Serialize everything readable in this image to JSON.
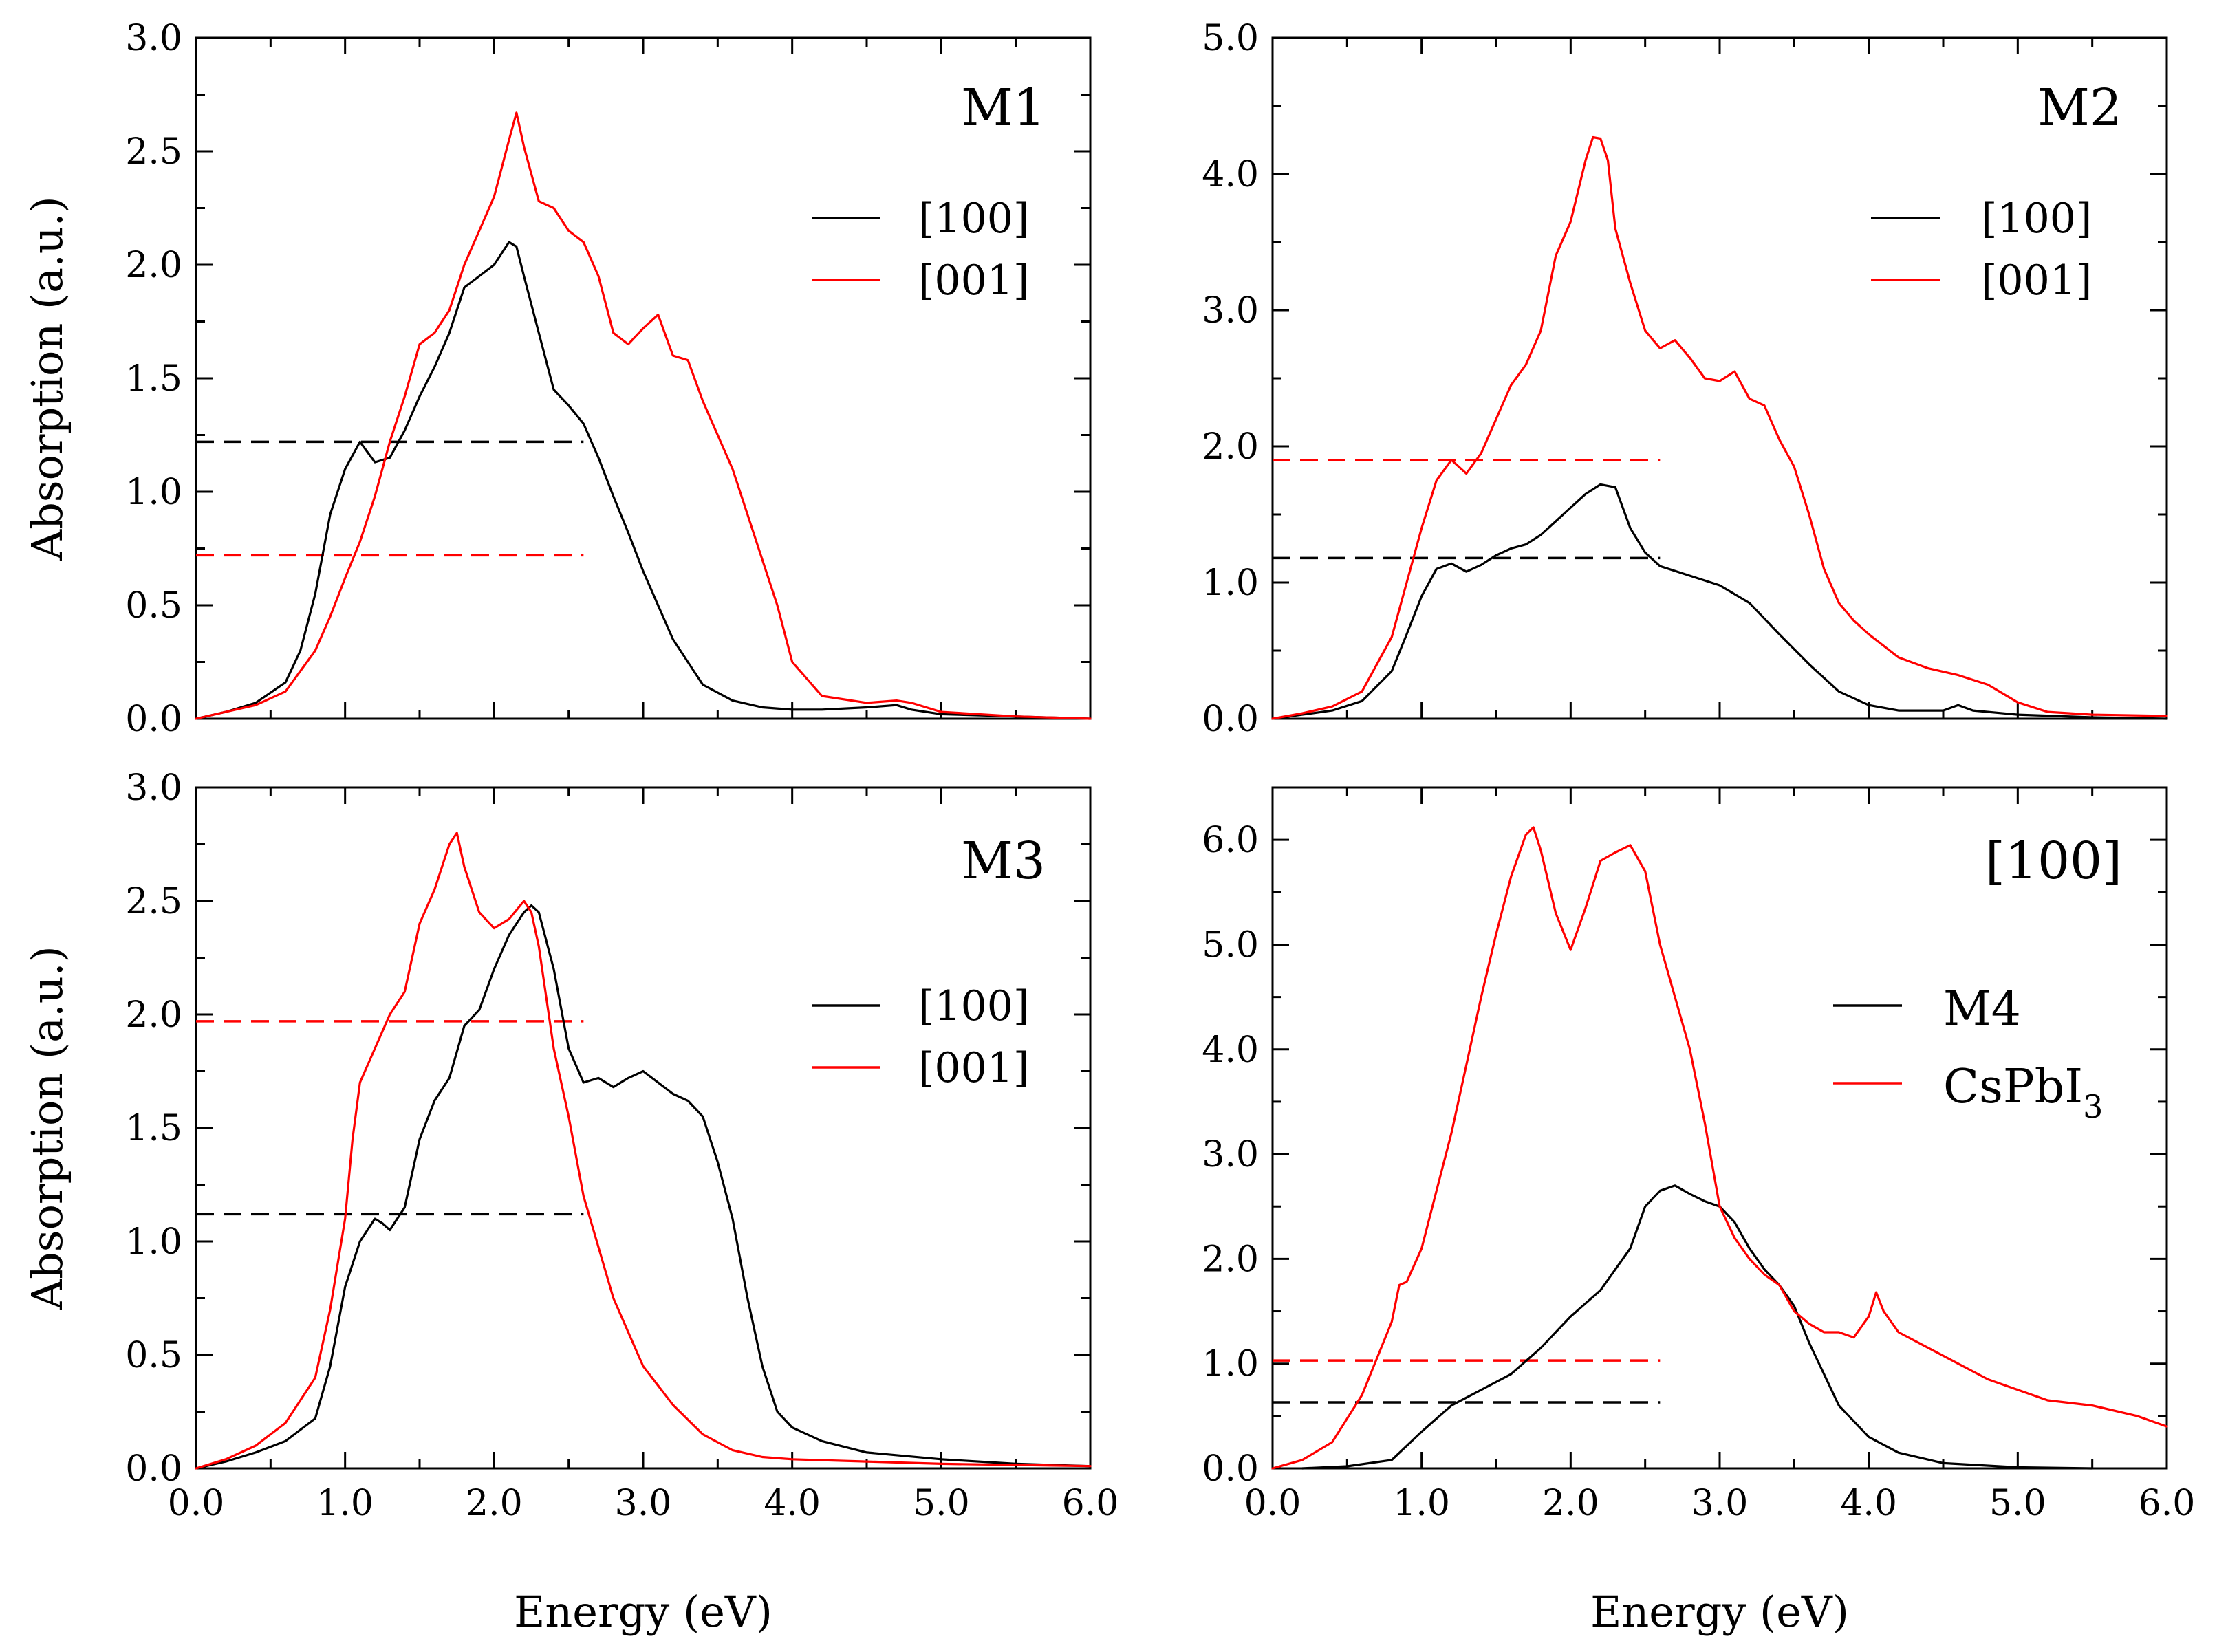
{
  "colors": {
    "black": "#000000",
    "red": "#ff0000"
  },
  "chart_data": [
    {
      "type": "line",
      "panel_label": "M1",
      "xlabel": "",
      "ylabel": "Absorption (a.u.)",
      "xlim": [
        0,
        6
      ],
      "ylim": [
        0,
        3
      ],
      "xticks": [
        0,
        1,
        2,
        3,
        4,
        5,
        6
      ],
      "xtick_labels": [
        "",
        "",
        "",
        "",
        "",
        "",
        ""
      ],
      "yticks": [
        0,
        0.5,
        1,
        1.5,
        2,
        2.5,
        3
      ],
      "ytick_labels": [
        "0.0",
        "0.5",
        "1.0",
        "1.5",
        "2.0",
        "2.5",
        "3.0"
      ],
      "series": [
        {
          "name": "[100]",
          "color": "black",
          "x": [
            0,
            0.2,
            0.4,
            0.6,
            0.7,
            0.8,
            0.9,
            1.0,
            1.1,
            1.2,
            1.3,
            1.4,
            1.5,
            1.6,
            1.7,
            1.8,
            1.9,
            2.0,
            2.1,
            2.15,
            2.2,
            2.3,
            2.4,
            2.5,
            2.6,
            2.7,
            2.8,
            2.9,
            3.0,
            3.2,
            3.4,
            3.6,
            3.8,
            4.0,
            4.2,
            4.5,
            4.7,
            4.8,
            5.0,
            5.5,
            6.0
          ],
          "y": [
            0,
            0.03,
            0.07,
            0.16,
            0.3,
            0.55,
            0.9,
            1.1,
            1.22,
            1.13,
            1.15,
            1.27,
            1.42,
            1.55,
            1.7,
            1.9,
            1.95,
            2.0,
            2.1,
            2.08,
            1.95,
            1.7,
            1.45,
            1.38,
            1.3,
            1.15,
            0.98,
            0.82,
            0.65,
            0.35,
            0.15,
            0.08,
            0.05,
            0.04,
            0.04,
            0.05,
            0.06,
            0.04,
            0.02,
            0.01,
            0.0
          ]
        },
        {
          "name": "[001]",
          "color": "red",
          "x": [
            0,
            0.2,
            0.4,
            0.6,
            0.8,
            0.9,
            1.0,
            1.1,
            1.2,
            1.3,
            1.4,
            1.5,
            1.6,
            1.7,
            1.8,
            1.9,
            2.0,
            2.1,
            2.15,
            2.2,
            2.3,
            2.4,
            2.5,
            2.6,
            2.7,
            2.8,
            2.9,
            3.0,
            3.1,
            3.2,
            3.3,
            3.4,
            3.5,
            3.6,
            3.7,
            3.8,
            3.9,
            4.0,
            4.2,
            4.5,
            4.7,
            4.8,
            5.0,
            5.5,
            6.0
          ],
          "y": [
            0,
            0.03,
            0.06,
            0.12,
            0.3,
            0.45,
            0.62,
            0.78,
            0.98,
            1.22,
            1.42,
            1.65,
            1.7,
            1.8,
            2.0,
            2.15,
            2.3,
            2.55,
            2.67,
            2.52,
            2.28,
            2.25,
            2.15,
            2.1,
            1.95,
            1.7,
            1.65,
            1.72,
            1.78,
            1.6,
            1.58,
            1.4,
            1.25,
            1.1,
            0.9,
            0.7,
            0.5,
            0.25,
            0.1,
            0.07,
            0.08,
            0.07,
            0.03,
            0.01,
            0.0
          ]
        }
      ],
      "dashed_levels": [
        {
          "color": "black",
          "y": 1.22,
          "x": [
            0,
            2.6
          ]
        },
        {
          "color": "red",
          "y": 0.72,
          "x": [
            0,
            2.6
          ]
        }
      ]
    },
    {
      "type": "line",
      "panel_label": "M2",
      "xlabel": "",
      "ylabel": "",
      "xlim": [
        0,
        6
      ],
      "ylim": [
        0,
        5
      ],
      "xticks": [
        0,
        1,
        2,
        3,
        4,
        5,
        6
      ],
      "xtick_labels": [
        "",
        "",
        "",
        "",
        "",
        "",
        ""
      ],
      "yticks": [
        0,
        1,
        2,
        3,
        4,
        5
      ],
      "ytick_labels": [
        "0.0",
        "1.0",
        "2.0",
        "3.0",
        "4.0",
        "5.0"
      ],
      "series": [
        {
          "name": "[100]",
          "color": "black",
          "x": [
            0,
            0.2,
            0.4,
            0.6,
            0.8,
            0.9,
            1.0,
            1.1,
            1.2,
            1.3,
            1.4,
            1.5,
            1.6,
            1.7,
            1.8,
            1.9,
            2.0,
            2.1,
            2.2,
            2.3,
            2.4,
            2.5,
            2.6,
            2.8,
            3.0,
            3.2,
            3.4,
            3.6,
            3.8,
            4.0,
            4.2,
            4.5,
            4.6,
            4.7,
            5.0,
            5.5,
            6.0
          ],
          "y": [
            0,
            0.03,
            0.06,
            0.13,
            0.35,
            0.62,
            0.9,
            1.1,
            1.14,
            1.08,
            1.13,
            1.2,
            1.25,
            1.28,
            1.35,
            1.45,
            1.55,
            1.65,
            1.72,
            1.7,
            1.4,
            1.22,
            1.12,
            1.05,
            0.98,
            0.85,
            0.62,
            0.4,
            0.2,
            0.1,
            0.06,
            0.06,
            0.1,
            0.06,
            0.03,
            0.01,
            0.0
          ]
        },
        {
          "name": "[001]",
          "color": "red",
          "x": [
            0,
            0.2,
            0.4,
            0.6,
            0.8,
            0.9,
            1.0,
            1.1,
            1.2,
            1.3,
            1.4,
            1.5,
            1.6,
            1.7,
            1.8,
            1.9,
            2.0,
            2.1,
            2.15,
            2.2,
            2.25,
            2.3,
            2.4,
            2.5,
            2.6,
            2.7,
            2.8,
            2.9,
            3.0,
            3.1,
            3.2,
            3.3,
            3.4,
            3.5,
            3.6,
            3.7,
            3.8,
            3.9,
            4.0,
            4.2,
            4.4,
            4.6,
            4.8,
            5.0,
            5.2,
            5.5,
            6.0
          ],
          "y": [
            0,
            0.04,
            0.09,
            0.2,
            0.6,
            1.0,
            1.4,
            1.75,
            1.9,
            1.8,
            1.95,
            2.2,
            2.45,
            2.6,
            2.85,
            3.4,
            3.65,
            4.1,
            4.27,
            4.26,
            4.1,
            3.6,
            3.2,
            2.85,
            2.72,
            2.78,
            2.65,
            2.5,
            2.48,
            2.55,
            2.35,
            2.3,
            2.05,
            1.85,
            1.5,
            1.1,
            0.85,
            0.72,
            0.62,
            0.45,
            0.37,
            0.32,
            0.25,
            0.12,
            0.05,
            0.03,
            0.02
          ]
        }
      ],
      "dashed_levels": [
        {
          "color": "red",
          "y": 1.9,
          "x": [
            0,
            2.6
          ]
        },
        {
          "color": "black",
          "y": 1.18,
          "x": [
            0,
            2.6
          ]
        }
      ]
    },
    {
      "type": "line",
      "panel_label": "M3",
      "xlabel": "Energy (eV)",
      "ylabel": "Absorption (a.u.)",
      "xlim": [
        0,
        6
      ],
      "ylim": [
        0,
        3
      ],
      "xticks": [
        0,
        1,
        2,
        3,
        4,
        5,
        6
      ],
      "xtick_labels": [
        "0.0",
        "1.0",
        "2.0",
        "3.0",
        "4.0",
        "5.0",
        "6.0"
      ],
      "yticks": [
        0,
        0.5,
        1,
        1.5,
        2,
        2.5,
        3
      ],
      "ytick_labels": [
        "0.0",
        "0.5",
        "1.0",
        "1.5",
        "2.0",
        "2.5",
        "3.0"
      ],
      "series": [
        {
          "name": "[100]",
          "color": "black",
          "x": [
            0,
            0.2,
            0.4,
            0.6,
            0.8,
            0.9,
            1.0,
            1.1,
            1.2,
            1.25,
            1.3,
            1.4,
            1.5,
            1.6,
            1.7,
            1.8,
            1.9,
            2.0,
            2.1,
            2.2,
            2.25,
            2.3,
            2.4,
            2.5,
            2.6,
            2.7,
            2.8,
            2.9,
            3.0,
            3.1,
            3.2,
            3.3,
            3.4,
            3.5,
            3.6,
            3.7,
            3.8,
            3.9,
            4.0,
            4.2,
            4.5,
            5.0,
            5.5,
            6.0
          ],
          "y": [
            0,
            0.03,
            0.07,
            0.12,
            0.22,
            0.45,
            0.8,
            1.0,
            1.1,
            1.08,
            1.05,
            1.15,
            1.45,
            1.62,
            1.72,
            1.95,
            2.02,
            2.2,
            2.35,
            2.45,
            2.48,
            2.45,
            2.2,
            1.85,
            1.7,
            1.72,
            1.68,
            1.72,
            1.75,
            1.7,
            1.65,
            1.62,
            1.55,
            1.35,
            1.1,
            0.75,
            0.45,
            0.25,
            0.18,
            0.12,
            0.07,
            0.04,
            0.02,
            0.01
          ]
        },
        {
          "name": "[001]",
          "color": "red",
          "x": [
            0,
            0.2,
            0.4,
            0.6,
            0.8,
            0.9,
            1.0,
            1.05,
            1.1,
            1.2,
            1.3,
            1.4,
            1.5,
            1.6,
            1.7,
            1.75,
            1.8,
            1.9,
            2.0,
            2.1,
            2.2,
            2.25,
            2.3,
            2.4,
            2.5,
            2.6,
            2.8,
            3.0,
            3.2,
            3.4,
            3.6,
            3.8,
            4.0,
            4.5,
            5.0,
            6.0
          ],
          "y": [
            0,
            0.04,
            0.1,
            0.2,
            0.4,
            0.7,
            1.1,
            1.45,
            1.7,
            1.85,
            2.0,
            2.1,
            2.4,
            2.55,
            2.75,
            2.8,
            2.65,
            2.45,
            2.38,
            2.42,
            2.5,
            2.45,
            2.3,
            1.85,
            1.55,
            1.2,
            0.75,
            0.45,
            0.28,
            0.15,
            0.08,
            0.05,
            0.04,
            0.03,
            0.02,
            0.01
          ]
        }
      ],
      "dashed_levels": [
        {
          "color": "red",
          "y": 1.97,
          "x": [
            0,
            2.6
          ]
        },
        {
          "color": "black",
          "y": 1.12,
          "x": [
            0,
            2.6
          ]
        }
      ]
    },
    {
      "type": "line",
      "panel_label": "[100]",
      "xlabel": "Energy (eV)",
      "ylabel": "",
      "xlim": [
        0,
        6
      ],
      "ylim": [
        0,
        6.5
      ],
      "xticks": [
        0,
        1,
        2,
        3,
        4,
        5,
        6
      ],
      "xtick_labels": [
        "0.0",
        "1.0",
        "2.0",
        "3.0",
        "4.0",
        "5.0",
        "6.0"
      ],
      "yticks": [
        0,
        1,
        2,
        3,
        4,
        5,
        6
      ],
      "ytick_labels": [
        "0.0",
        "1.0",
        "2.0",
        "3.0",
        "4.0",
        "5.0",
        "6.0"
      ],
      "series": [
        {
          "name": "M4",
          "color": "black",
          "x": [
            0.2,
            0.5,
            0.8,
            1.0,
            1.2,
            1.4,
            1.6,
            1.8,
            2.0,
            2.2,
            2.4,
            2.5,
            2.6,
            2.7,
            2.8,
            2.9,
            3.0,
            3.1,
            3.2,
            3.3,
            3.4,
            3.5,
            3.6,
            3.7,
            3.8,
            4.0,
            4.2,
            4.5,
            5.0,
            5.5
          ],
          "y": [
            0.0,
            0.02,
            0.08,
            0.35,
            0.6,
            0.75,
            0.9,
            1.15,
            1.45,
            1.7,
            2.1,
            2.5,
            2.65,
            2.7,
            2.62,
            2.55,
            2.5,
            2.35,
            2.1,
            1.9,
            1.75,
            1.55,
            1.2,
            0.9,
            0.6,
            0.3,
            0.15,
            0.05,
            0.01,
            0.0
          ]
        },
        {
          "name": "CsPbI3",
          "color": "red",
          "x": [
            0,
            0.2,
            0.4,
            0.6,
            0.8,
            0.85,
            0.9,
            1.0,
            1.1,
            1.2,
            1.3,
            1.4,
            1.5,
            1.6,
            1.7,
            1.75,
            1.8,
            1.9,
            2.0,
            2.1,
            2.2,
            2.3,
            2.4,
            2.5,
            2.6,
            2.7,
            2.8,
            2.9,
            3.0,
            3.1,
            3.2,
            3.3,
            3.4,
            3.5,
            3.6,
            3.7,
            3.8,
            3.9,
            4.0,
            4.05,
            4.1,
            4.2,
            4.4,
            4.6,
            4.8,
            5.0,
            5.2,
            5.5,
            5.8,
            6.0
          ],
          "y": [
            0,
            0.08,
            0.25,
            0.7,
            1.4,
            1.75,
            1.78,
            2.1,
            2.65,
            3.2,
            3.85,
            4.5,
            5.1,
            5.65,
            6.05,
            6.12,
            5.9,
            5.3,
            4.95,
            5.35,
            5.8,
            5.88,
            5.95,
            5.7,
            5.0,
            4.5,
            4.0,
            3.3,
            2.5,
            2.2,
            2.0,
            1.85,
            1.75,
            1.5,
            1.38,
            1.3,
            1.3,
            1.25,
            1.45,
            1.68,
            1.5,
            1.3,
            1.15,
            1.0,
            0.85,
            0.75,
            0.65,
            0.6,
            0.5,
            0.4
          ]
        }
      ],
      "dashed_levels": [
        {
          "color": "red",
          "y": 1.03,
          "x": [
            0,
            2.6
          ]
        },
        {
          "color": "black",
          "y": 0.63,
          "x": [
            0,
            2.6
          ]
        }
      ]
    }
  ],
  "legend_texts": [
    [
      "[100]",
      "[001]"
    ],
    [
      "[100]",
      "[001]"
    ],
    [
      "[100]",
      "[001]"
    ],
    [
      "M4",
      "CsPbI",
      "3"
    ]
  ]
}
